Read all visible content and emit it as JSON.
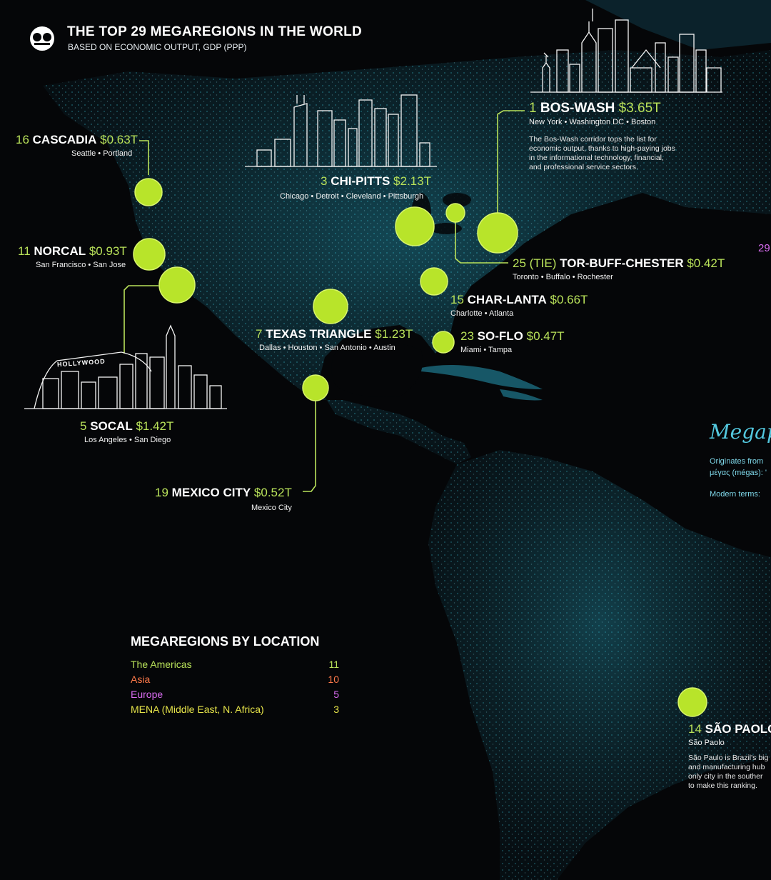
{
  "header": {
    "title": "THE TOP 29 MEGAREGIONS IN THE WORLD",
    "subtitle": "BASED ON ECONOMIC OUTPUT, GDP (PPP)"
  },
  "colors": {
    "accent": "#b9e25a",
    "bubble": "#b8e42a",
    "americas": "#b9e25a",
    "asia": "#ff7a4a",
    "europe": "#d86cf0",
    "mena": "#e6e44a",
    "map_lights": "#2ec6de"
  },
  "regions": {
    "boswash": {
      "rank": "1",
      "name": "BOS-WASH",
      "gdp": "$3.65T",
      "cities": "New York • Washington DC • Boston",
      "description": [
        "The Bos-Wash corridor tops the list for",
        "economic output, thanks to high-paying jobs",
        "in the informational technology, financial,",
        "and professional service sectors."
      ]
    },
    "chipitts": {
      "rank": "3",
      "name": "CHI-PITTS",
      "gdp": "$2.13T",
      "cities": "Chicago • Detroit • Cleveland • Pittsburgh"
    },
    "cascadia": {
      "rank": "16",
      "name": "CASCADIA",
      "gdp": "$0.63T",
      "cities": "Seattle • Portland"
    },
    "norcal": {
      "rank": "11",
      "name": "NORCAL",
      "gdp": "$0.93T",
      "cities": "San Francisco • San Jose"
    },
    "torbuff": {
      "rank": "25 (TIE)",
      "name": "TOR-BUFF-CHESTER",
      "gdp": "$0.42T",
      "cities": "Toronto • Buffalo • Rochester"
    },
    "charlanta": {
      "rank": "15",
      "name": "CHAR-LANTA",
      "gdp": "$0.66T",
      "cities": "Charlotte • Atlanta"
    },
    "texas": {
      "rank": "7",
      "name": "TEXAS TRIANGLE",
      "gdp": "$1.23T",
      "cities": "Dallas • Houston • San Antonio • Austin"
    },
    "soflo": {
      "rank": "23",
      "name": "SO-FLO",
      "gdp": "$0.47T",
      "cities": "Miami • Tampa"
    },
    "socal": {
      "rank": "5",
      "name": "SOCAL",
      "gdp": "$1.42T",
      "cities": "Los Angeles • San Diego",
      "sign": "HOLLYWOOD"
    },
    "mexico": {
      "rank": "19",
      "name": "MEXICO CITY",
      "gdp": "$0.52T",
      "cities": "Mexico City"
    },
    "saopaolo": {
      "rank": "14",
      "name": "SÃO PAOLO",
      "gdp": "",
      "cities": "São Paolo",
      "description": [
        "São Paulo is Brazil's big",
        "and manufacturing hub",
        "only city in the souther",
        "to make this ranking."
      ]
    }
  },
  "offscreen": {
    "rank_29": "29"
  },
  "definition": {
    "title": "Megap",
    "origin": "Originates from",
    "greek": "μέγας (mégas): '",
    "modern": "Modern terms:"
  },
  "legend": {
    "title": "MEGAREGIONS BY LOCATION",
    "rows": [
      {
        "label": "The Americas",
        "count": "11",
        "color": "#b9e25a"
      },
      {
        "label": "Asia",
        "count": "10",
        "color": "#ff7a4a"
      },
      {
        "label": "Europe",
        "count": "5",
        "color": "#d86cf0"
      },
      {
        "label": "MENA (Middle East, N. Africa)",
        "count": "3",
        "color": "#e6e44a"
      }
    ]
  }
}
